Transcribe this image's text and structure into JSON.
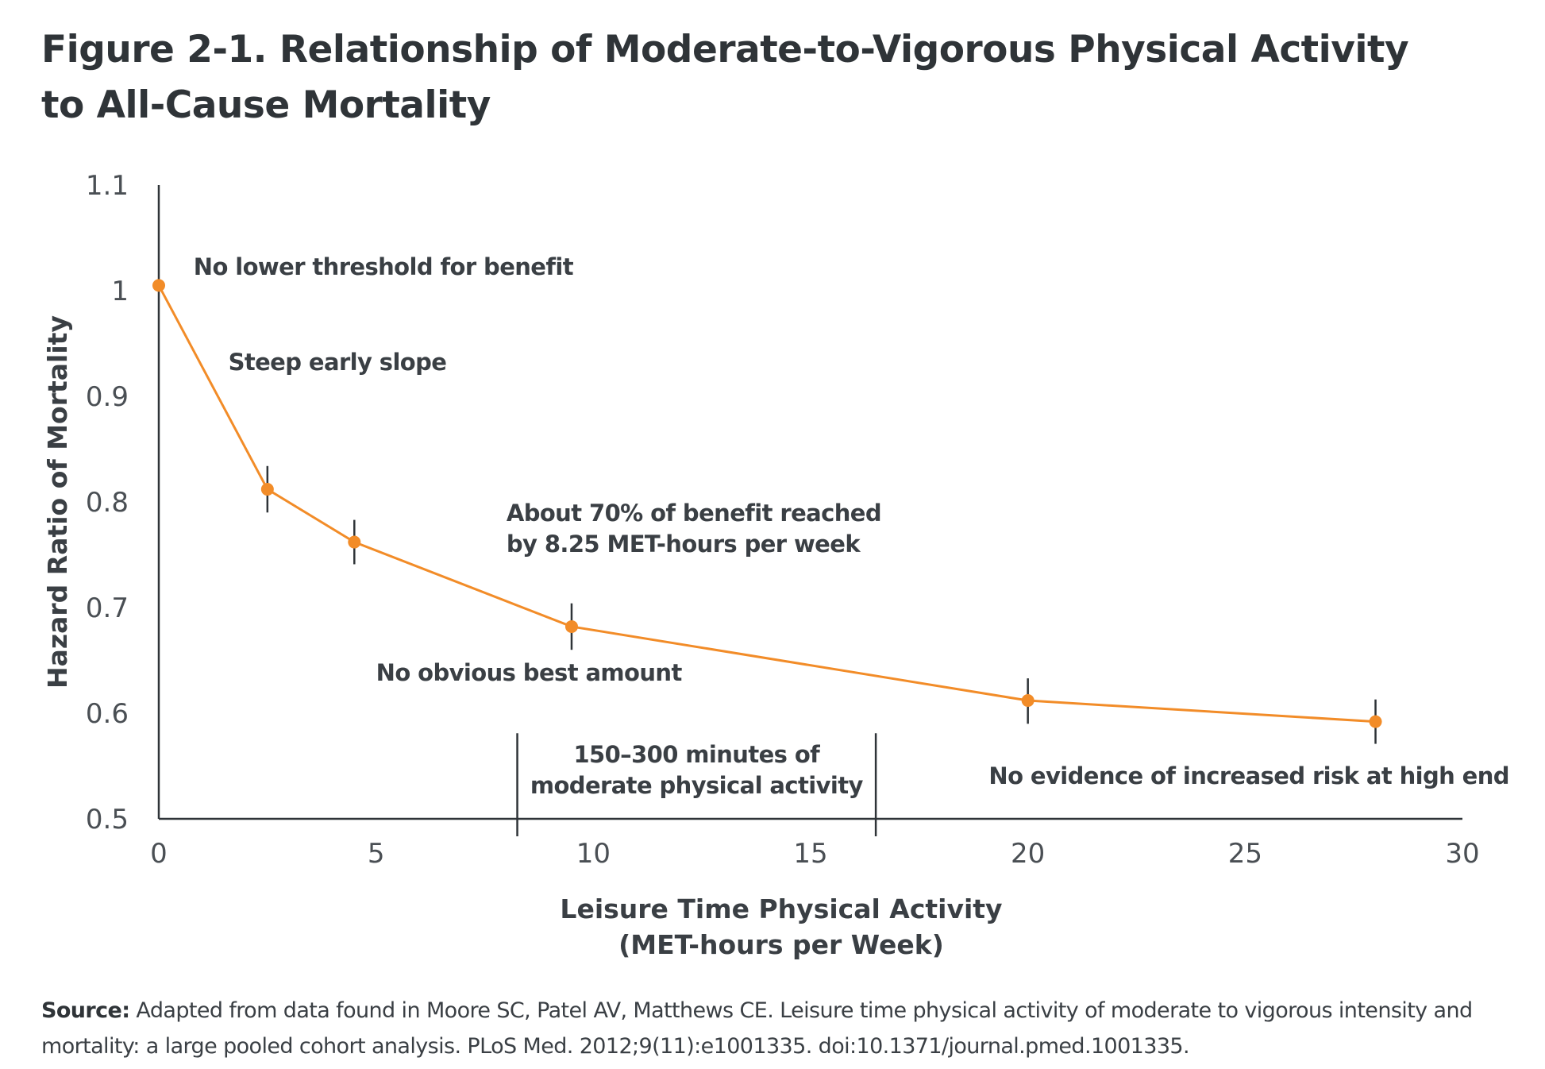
{
  "title": {
    "line1": "Figure 2-1. Relationship of Moderate-to-Vigorous Physical Activity",
    "line2": "to All-Cause Mortality"
  },
  "colors": {
    "series": "#f28c28",
    "axis": "#2f3438",
    "text": "#3a3f44"
  },
  "chart_data": {
    "type": "line",
    "xlabel": [
      "Leisure Time Physical Activity",
      "(MET-hours per Week)"
    ],
    "ylabel": "Hazard Ratio of Mortality",
    "xlim": [
      0,
      30
    ],
    "ylim": [
      0.5,
      1.1
    ],
    "xticks": [
      0,
      5,
      10,
      15,
      20,
      25,
      30
    ],
    "yticks": [
      0.5,
      0.6,
      0.7,
      0.8,
      0.9,
      1,
      1.1
    ],
    "ytick_labels": [
      "0.5",
      "0.6",
      "0.7",
      "0.8",
      "0.9",
      "1",
      "1.1"
    ],
    "series": [
      {
        "points": [
          {
            "x": 0,
            "y": 1.005,
            "lo": null,
            "hi": null
          },
          {
            "x": 2.5,
            "y": 0.812,
            "lo": 0.79,
            "hi": 0.834
          },
          {
            "x": 4.5,
            "y": 0.762,
            "lo": 0.741,
            "hi": 0.783
          },
          {
            "x": 9.5,
            "y": 0.682,
            "lo": 0.66,
            "hi": 0.704
          },
          {
            "x": 20,
            "y": 0.612,
            "lo": 0.59,
            "hi": 0.633
          },
          {
            "x": 28,
            "y": 0.592,
            "lo": 0.571,
            "hi": 0.613
          }
        ]
      }
    ],
    "reference_range": {
      "x_start": 8.25,
      "x_end": 16.5,
      "label": [
        "150–300 minutes of",
        "moderate physical activity"
      ]
    },
    "annotations": [
      {
        "id": "threshold",
        "lines": [
          "No lower threshold for benefit"
        ],
        "x": 0.8,
        "y": 1.015
      },
      {
        "id": "steep",
        "lines": [
          "Steep early slope"
        ],
        "x": 1.6,
        "y": 0.925
      },
      {
        "id": "seventy",
        "lines": [
          "About 70% of benefit reached",
          "by 8.25 MET-hours per week"
        ],
        "x": 8.0,
        "y": 0.782
      },
      {
        "id": "best",
        "lines": [
          "No obvious best amount"
        ],
        "x": 5.0,
        "y": 0.631
      },
      {
        "id": "highend",
        "lines": [
          "No evidence of increased risk at high end"
        ],
        "x": 19.1,
        "y": 0.533
      }
    ]
  },
  "source": {
    "label": "Source:",
    "text": " Adapted from data found in Moore SC, Patel AV, Matthews CE. Leisure time physical activity of moderate to vigorous intensity and mortality: a large pooled cohort analysis. PLoS Med. 2012;9(11):e1001335. doi:10.1371/journal.pmed.1001335."
  }
}
